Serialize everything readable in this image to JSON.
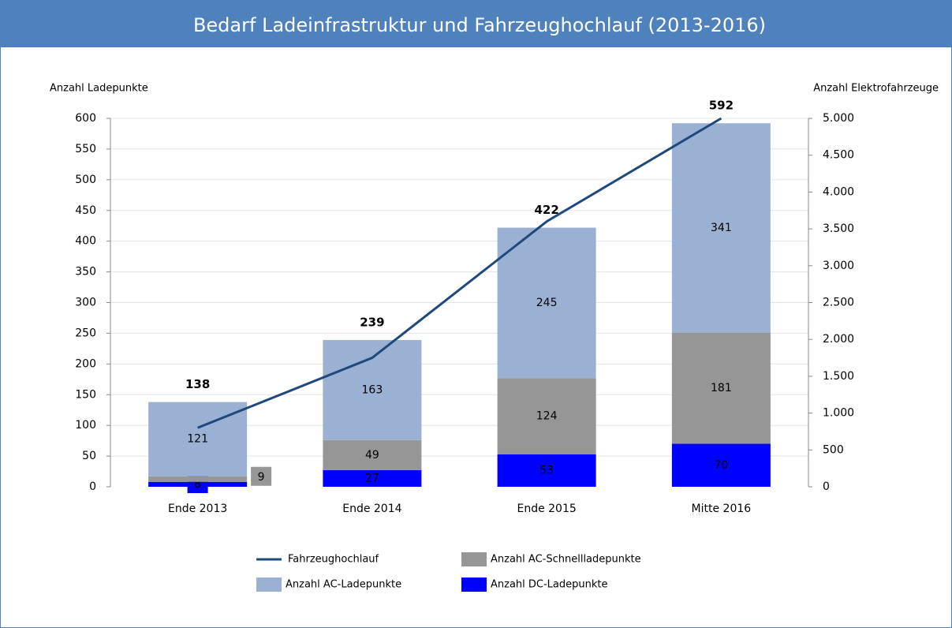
{
  "chart_data": {
    "type": "stacked-bar-line",
    "title": "Bedarf Ladeinfrastruktur und Fahrzeughochlauf (2013-2016)",
    "y_label": "Anzahl Ladepunkte",
    "y2_label": "Anzahl Elektrofahrzeuge",
    "categories": [
      "Ende 2013",
      "Ende 2014",
      "Ende 2015",
      "Mitte 2016"
    ],
    "series": [
      {
        "name": "Anzahl DC-Ladepunkte",
        "color": "#0000ff",
        "values": [
          8,
          27,
          53,
          70
        ]
      },
      {
        "name": "Anzahl AC-Schnellladepunkte",
        "color": "#969696",
        "values": [
          9,
          49,
          124,
          181
        ]
      },
      {
        "name": "Anzahl AC-Ladepunkte",
        "color": "#9bb1d3",
        "values": [
          121,
          163,
          245,
          341
        ]
      },
      {
        "name": "Fahrzeughochlauf",
        "color": "#1f497d",
        "values": [
          800,
          1750,
          3600,
          5000
        ],
        "axis": "y2",
        "kind": "line"
      }
    ],
    "totals": [
      138,
      239,
      422,
      592
    ],
    "ylim": [
      0,
      600
    ],
    "yticks": [
      0,
      50,
      100,
      150,
      200,
      250,
      300,
      350,
      400,
      450,
      500,
      550,
      600
    ],
    "y2lim": [
      0,
      5000
    ],
    "y2ticks": [
      0,
      500,
      {
        "value": 1000,
        "label": "1.000"
      },
      {
        "value": 1500,
        "label": "1.500"
      },
      {
        "value": 2000,
        "label": "2.000"
      },
      {
        "value": 2500,
        "label": "2.500"
      },
      {
        "value": 3000,
        "label": "3.000"
      },
      {
        "value": 3500,
        "label": "3.500"
      },
      {
        "value": 4000,
        "label": "4.000"
      },
      {
        "value": 4500,
        "label": "4.500"
      },
      {
        "value": 5000,
        "label": "5.000"
      }
    ],
    "grid": true
  }
}
